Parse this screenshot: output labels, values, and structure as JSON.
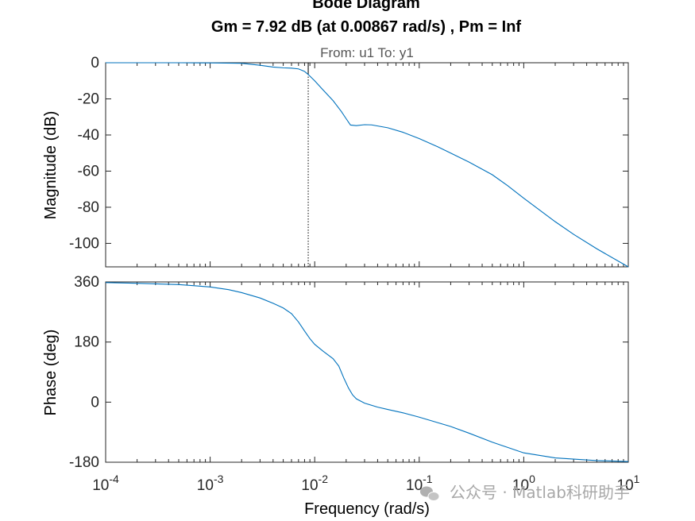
{
  "chart_data": {
    "type": "line",
    "title": "Bode Diagram",
    "subtitle": "Gm = 7.92 dB (at 0.00867 rad/s) ,  Pm = Inf",
    "io_label": "From: u1  To: y1",
    "xlabel": "Frequency  (rad/s)",
    "xscale": "log",
    "xlim": [
      0.0001,
      10
    ],
    "x_ticks": [
      0.0001,
      0.001,
      0.01,
      0.1,
      1,
      10
    ],
    "x_tick_labels": [
      {
        "base": "10",
        "exp": "-4"
      },
      {
        "base": "10",
        "exp": "-3"
      },
      {
        "base": "10",
        "exp": "-2"
      },
      {
        "base": "10",
        "exp": "-1"
      },
      {
        "base": "10",
        "exp": "0"
      },
      {
        "base": "10",
        "exp": "1"
      }
    ],
    "gain_margin_frequency": 0.00867,
    "line_color": "#0072bd",
    "panels": [
      {
        "ylabel": "Magnitude (dB)",
        "ylim": [
          -113,
          0
        ],
        "yticks": [
          0,
          -20,
          -40,
          -60,
          -80,
          -100
        ],
        "series": [
          {
            "x": [
              0.0001,
              0.00025,
              0.0005,
              0.001,
              0.002,
              0.003,
              0.004,
              0.005,
              0.006,
              0.007,
              0.008,
              0.00867,
              0.01,
              0.012,
              0.015,
              0.018,
              0.02,
              0.022,
              0.025,
              0.03,
              0.035,
              0.05,
              0.07,
              0.1,
              0.15,
              0.2,
              0.3,
              0.5,
              0.7,
              1,
              2,
              3,
              5,
              10
            ],
            "y": [
              0,
              0,
              0,
              -0.1,
              -0.3,
              -1.4,
              -2.4,
              -2.8,
              -3,
              -3.4,
              -4.8,
              -6.5,
              -10,
              -15,
              -21,
              -27,
              -31,
              -34.5,
              -34.8,
              -34.3,
              -34.4,
              -36,
              -38.5,
              -42,
              -46.5,
              -50,
              -55,
              -62,
              -68,
              -75,
              -88,
              -95,
              -103,
              -113
            ]
          }
        ]
      },
      {
        "ylabel": "Phase (deg)",
        "ylim": [
          -180,
          360
        ],
        "yticks": [
          360,
          180,
          0,
          -180
        ],
        "series": [
          {
            "x": [
              0.0001,
              0.0002,
              0.0005,
              0.001,
              0.0015,
              0.002,
              0.003,
              0.004,
              0.005,
              0.006,
              0.007,
              0.008,
              0.009,
              0.01,
              0.012,
              0.015,
              0.017,
              0.019,
              0.021,
              0.023,
              0.025,
              0.03,
              0.04,
              0.05,
              0.07,
              0.1,
              0.2,
              0.3,
              0.5,
              1,
              2,
              5,
              10
            ],
            "y": [
              358,
              356,
              352,
              345,
              337,
              328,
              312,
              296,
              282,
              265,
              240,
              213,
              190,
              173,
              153,
              130,
              108,
              72,
              43,
              22,
              10,
              -3,
              -15,
              -22,
              -32,
              -45,
              -73,
              -93,
              -120,
              -152,
              -167,
              -175,
              -178
            ]
          }
        ]
      }
    ],
    "watermark": "公众号 · Matlab科研助手"
  }
}
